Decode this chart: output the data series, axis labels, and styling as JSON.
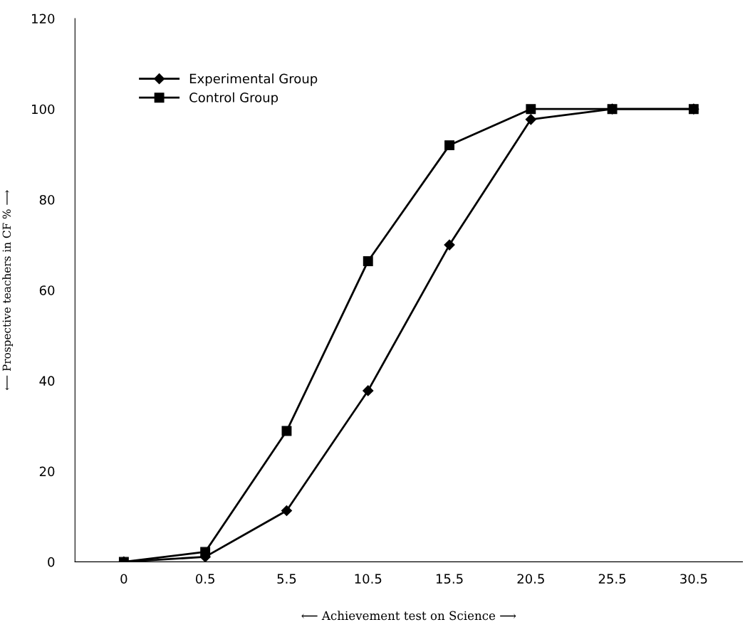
{
  "chart_data": {
    "type": "line",
    "xlabel": "⟵ Achievement test on Science ⟶",
    "ylabel": "⟵ Prospective teachers in CF % ⟶",
    "categories": [
      "0",
      "0.5",
      "5.5",
      "10.5",
      "15.5",
      "20.5",
      "25.5",
      "30.5"
    ],
    "series": [
      {
        "name": "Experimental Group",
        "color": "#000000",
        "marker": "diamond",
        "values": [
          0,
          1.1,
          11.3,
          37.8,
          70,
          97.7,
          100,
          100
        ]
      },
      {
        "name": "Control Group",
        "color": "#000000",
        "marker": "square",
        "values": [
          0,
          2.2,
          28.9,
          66.4,
          92,
          100,
          100,
          100
        ]
      }
    ],
    "ylim": [
      0,
      120
    ],
    "yticks": [
      0,
      20,
      40,
      60,
      80,
      100,
      120
    ],
    "grid": false,
    "legend": "top left",
    "line_style": "solid"
  }
}
